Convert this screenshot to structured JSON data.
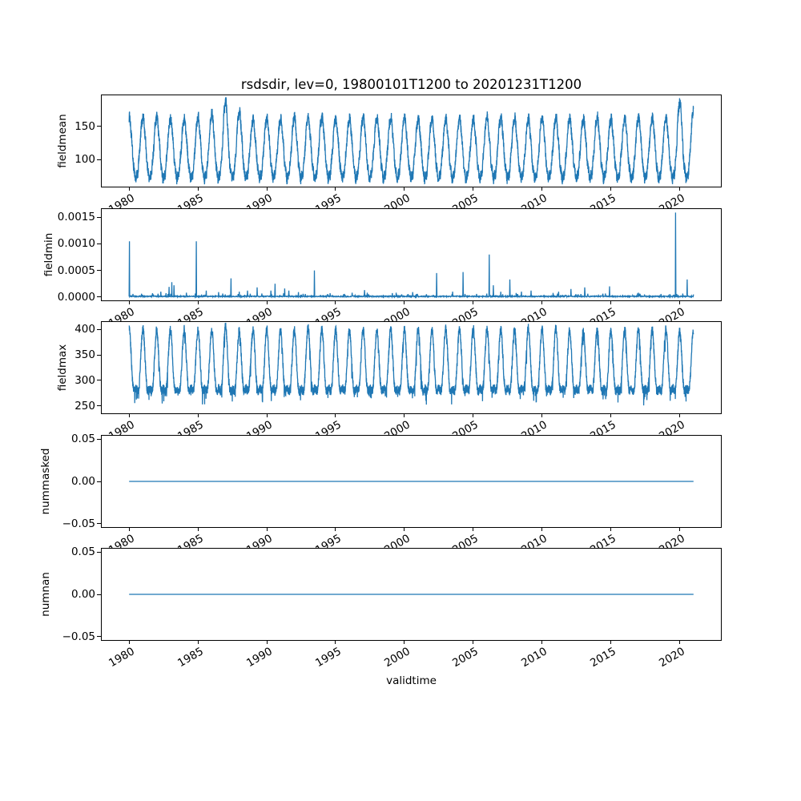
{
  "figure": {
    "title": "rsdsdir, lev=0, 19800101T1200 to 20201231T1200",
    "xlabel": "validtime",
    "line_color": "#1f77b4",
    "background_color": "#ffffff",
    "axis_color": "#000000",
    "x_start": 1980.0,
    "x_end": 2021.0,
    "xlim": [
      1977.95,
      2023.05
    ],
    "xticks": [
      {
        "v": 1980,
        "label": "1980"
      },
      {
        "v": 1985,
        "label": "1985"
      },
      {
        "v": 1990,
        "label": "1990"
      },
      {
        "v": 1995,
        "label": "1995"
      },
      {
        "v": 2000,
        "label": "2000"
      },
      {
        "v": 2005,
        "label": "2005"
      },
      {
        "v": 2010,
        "label": "2010"
      },
      {
        "v": 2015,
        "label": "2015"
      },
      {
        "v": 2020,
        "label": "2020"
      }
    ]
  },
  "chart_data": [
    {
      "name": "fieldmean",
      "type": "line",
      "ylabel": "fieldmean",
      "ylim": [
        57.6,
        198.4
      ],
      "yticks": [
        {
          "v": 100,
          "label": "100"
        },
        {
          "v": 150,
          "label": "150"
        }
      ],
      "summary": {
        "description": "Noisy annual cycle: peak near each January ~160, trough near each July ~70; elevated peaks 1986-1988 (max ~192 in 1987) and a tall ~190 peak at January 2020; series ends high ~175 at 2021.",
        "typical_january_peak": 162,
        "typical_july_trough": 70,
        "overall_min": 64,
        "overall_max": 192
      },
      "synth": {
        "kind": "seasonal",
        "mean": 113,
        "amp1": 45,
        "amp2": 4,
        "amp6": 3,
        "noise": 8,
        "samples_per_year": 120,
        "amp_scale_by_year": {
          "1986": 1.18,
          "1987": 1.55,
          "1988": 1.22,
          "2020": 1.55,
          "2021": 1.3
        }
      }
    },
    {
      "name": "fieldmin",
      "type": "line",
      "ylabel": "fieldmin",
      "ylim": [
        -8e-05,
        0.001672
      ],
      "yticks": [
        {
          "v": 0.0,
          "label": "0.0000"
        },
        {
          "v": 0.0005,
          "label": "0.0005"
        },
        {
          "v": 0.001,
          "label": "0.0010"
        },
        {
          "v": 0.0015,
          "label": "0.0015"
        }
      ],
      "summary": {
        "description": "Baseline hugging zero (0 to ~0.00003) with intermittent positive spikes; largest spikes ~0.00105 at 1980 and 1985, ~0.0008 at 2006, ~0.0016 near 2019.7.",
        "baseline_max": 3e-05,
        "overall_max": 0.00159
      },
      "synth": {
        "kind": "spikes",
        "baseline_max": 2e-05,
        "step_years": 0.02,
        "spikes": [
          [
            1980.02,
            0.00105
          ],
          [
            1980.9,
            6e-05
          ],
          [
            1981.7,
            7e-05
          ],
          [
            1982.3,
            0.0001
          ],
          [
            1982.9,
            0.00019
          ],
          [
            1983.1,
            0.00028
          ],
          [
            1983.25,
            0.00022
          ],
          [
            1984.15,
            8e-05
          ],
          [
            1984.88,
            0.00105
          ],
          [
            1985.6,
            0.00012
          ],
          [
            1986.5,
            9e-05
          ],
          [
            1987.4,
            0.00035
          ],
          [
            1988.0,
            0.0001
          ],
          [
            1988.6,
            0.00012
          ],
          [
            1989.3,
            0.00018
          ],
          [
            1990.3,
            0.00012
          ],
          [
            1990.6,
            0.00025
          ],
          [
            1991.3,
            0.00016
          ],
          [
            1991.6,
            0.00012
          ],
          [
            1992.3,
            9e-05
          ],
          [
            1993.45,
            0.0005
          ],
          [
            1994.6,
            7e-05
          ],
          [
            1996.2,
            8e-05
          ],
          [
            1997.1,
            0.00013
          ],
          [
            1997.3,
            8e-05
          ],
          [
            1999.4,
            8e-05
          ],
          [
            2000.6,
            9e-05
          ],
          [
            2002.35,
            0.00045
          ],
          [
            2003.5,
            0.0001
          ],
          [
            2004.25,
            0.00047
          ],
          [
            2006.15,
            0.0008
          ],
          [
            2006.45,
            0.00022
          ],
          [
            2007.0,
            0.0001
          ],
          [
            2007.65,
            0.00033
          ],
          [
            2008.5,
            0.0001
          ],
          [
            2009.2,
            0.00012
          ],
          [
            2011.2,
            0.0001
          ],
          [
            2012.1,
            0.00015
          ],
          [
            2013.1,
            0.00018
          ],
          [
            2014.9,
            0.0002
          ],
          [
            2017.0,
            8e-05
          ],
          [
            2019.7,
            0.00159
          ],
          [
            2020.55,
            0.00033
          ]
        ]
      }
    },
    {
      "name": "fieldmax",
      "type": "line",
      "ylabel": "fieldmax",
      "ylim": [
        233.7,
        416.3
      ],
      "yticks": [
        {
          "v": 250,
          "label": "250"
        },
        {
          "v": 300,
          "label": "300"
        },
        {
          "v": 350,
          "label": "350"
        },
        {
          "v": 400,
          "label": "400"
        }
      ],
      "summary": {
        "description": "Annual cycle with narrow peaks ~395-405 near each January and a broad noisy mid-year trough band ~265-300 with occasional dips to ~240-255 (deepest ~242 around 1989 and 1994).",
        "typical_peak": 400,
        "typical_trough": 280,
        "overall_min": 242,
        "overall_max": 408
      },
      "synth": {
        "kind": "seasonal",
        "mean": 320,
        "amp1": 58,
        "amp2": 22,
        "amp6": 0,
        "noise": 9,
        "samples_per_year": 120,
        "downspike": 26,
        "downspike_p": 0.05,
        "amp_scale_by_year": {
          "1987": 1.1,
          "1993": 1.05
        }
      }
    },
    {
      "name": "nummasked",
      "type": "line",
      "ylabel": "nummasked",
      "ylim": [
        -0.055,
        0.055
      ],
      "yticks": [
        {
          "v": -0.05,
          "label": "−0.05"
        },
        {
          "v": 0,
          "label": "0.00"
        },
        {
          "v": 0.05,
          "label": "0.05"
        }
      ],
      "summary": {
        "description": "Constant zero for the whole period.",
        "constant_value": 0
      },
      "synth": {
        "kind": "constant",
        "value": 0
      }
    },
    {
      "name": "numnan",
      "type": "line",
      "ylabel": "numnan",
      "ylim": [
        -0.055,
        0.055
      ],
      "yticks": [
        {
          "v": -0.05,
          "label": "−0.05"
        },
        {
          "v": 0,
          "label": "0.00"
        },
        {
          "v": 0.05,
          "label": "0.05"
        }
      ],
      "summary": {
        "description": "Constant zero for the whole period.",
        "constant_value": 0
      },
      "synth": {
        "kind": "constant",
        "value": 0
      }
    }
  ]
}
